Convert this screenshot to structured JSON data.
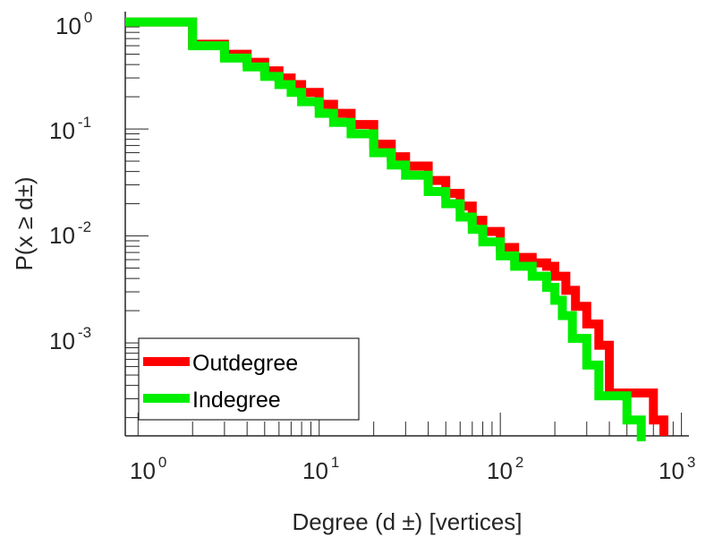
{
  "chart_data": {
    "type": "line",
    "title": "",
    "xlabel": "Degree (d ±) [vertices]",
    "ylabel": "P(x ≥ d±)",
    "xscale": "log",
    "yscale": "log",
    "xlim": [
      0.85,
      1100
    ],
    "ylim": [
      0.000135,
      1.25
    ],
    "x_ticks": [
      {
        "base": "10",
        "exp": "0",
        "value": 1
      },
      {
        "base": "10",
        "exp": "1",
        "value": 10
      },
      {
        "base": "10",
        "exp": "2",
        "value": 100
      },
      {
        "base": "10",
        "exp": "3",
        "value": 1000
      }
    ],
    "y_ticks": [
      {
        "base": "10",
        "exp": "0",
        "value": 1
      },
      {
        "base": "10",
        "exp": "-1",
        "value": 0.1
      },
      {
        "base": "10",
        "exp": "-2",
        "value": 0.01
      },
      {
        "base": "10",
        "exp": "-3",
        "value": 0.001
      }
    ],
    "grid": false,
    "legend_position": "bottom-left",
    "series": [
      {
        "name": "Outdegree",
        "color": "#ff0000",
        "x": [
          1,
          2,
          3,
          4,
          5,
          6,
          7,
          8,
          10,
          12,
          15,
          20,
          25,
          30,
          40,
          50,
          60,
          70,
          80,
          100,
          120,
          150,
          180,
          200,
          230,
          260,
          300,
          350,
          400,
          500,
          700,
          800
        ],
        "y": [
          1,
          0.62,
          0.5,
          0.42,
          0.35,
          0.3,
          0.26,
          0.22,
          0.17,
          0.14,
          0.11,
          0.072,
          0.055,
          0.045,
          0.033,
          0.025,
          0.019,
          0.014,
          0.011,
          0.0078,
          0.0063,
          0.0056,
          0.0052,
          0.0042,
          0.0031,
          0.0022,
          0.0015,
          0.00095,
          0.00034,
          0.00034,
          0.00019,
          0.00016
        ]
      },
      {
        "name": "Indegree",
        "color": "#00ee00",
        "x": [
          1,
          2,
          3,
          4,
          5,
          6,
          7,
          8,
          10,
          12,
          15,
          20,
          25,
          30,
          40,
          50,
          60,
          70,
          80,
          100,
          120,
          150,
          180,
          200,
          220,
          250,
          300,
          350,
          400,
          500,
          600
        ],
        "y": [
          1,
          0.6,
          0.46,
          0.38,
          0.31,
          0.26,
          0.22,
          0.18,
          0.14,
          0.115,
          0.09,
          0.06,
          0.046,
          0.037,
          0.026,
          0.02,
          0.015,
          0.0115,
          0.0088,
          0.0065,
          0.0052,
          0.0042,
          0.0033,
          0.0025,
          0.0018,
          0.0011,
          0.00062,
          0.00032,
          0.00032,
          0.00019,
          0.00012
        ]
      }
    ]
  }
}
